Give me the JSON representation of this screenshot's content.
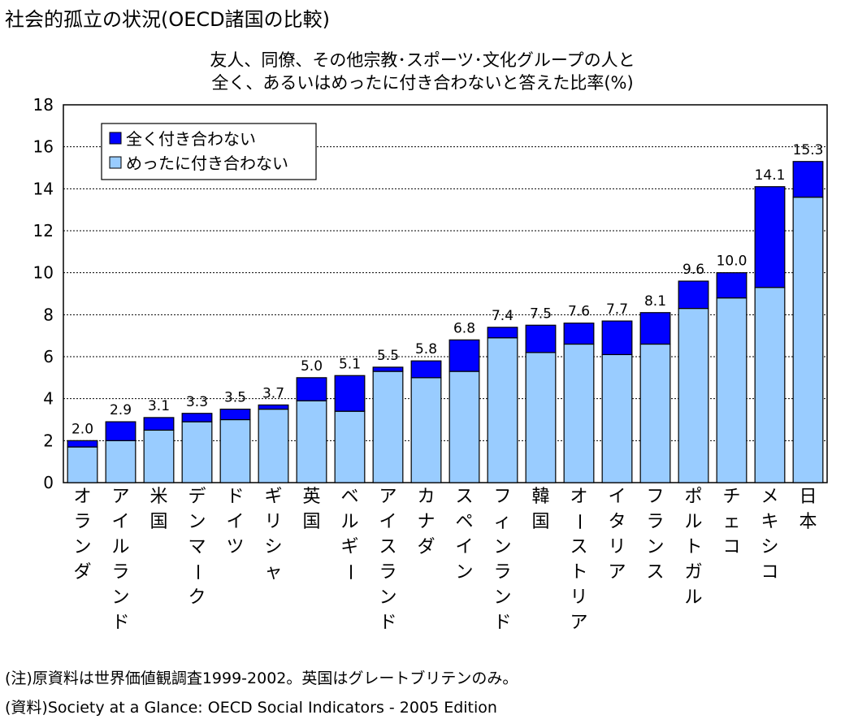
{
  "page_title": "社会的孤立の状況(OECD諸国の比較)",
  "notes": {
    "note": "(注)原資料は世界価値観調査1999-2002。英国はグレートブリテンのみ。",
    "source": "(資料)Society at a Glance: OECD Social Indicators - 2005 Edition"
  },
  "chart_data": {
    "type": "bar",
    "stacked": true,
    "title_lines": [
      "友人、同僚、その他宗教･スポーツ･文化グループの人と",
      "全く、あるいはめったに付き合わないと答えた比率(%)"
    ],
    "xlabel": "",
    "ylabel": "",
    "ylim": [
      0,
      18
    ],
    "yticks": [
      0,
      2,
      4,
      6,
      8,
      10,
      12,
      14,
      16,
      18
    ],
    "grid": true,
    "legend_position": "top-left",
    "categories": [
      "オランダ",
      "アイルランド",
      "米国",
      "デンマーク",
      "ドイツ",
      "ギリシャ",
      "英国",
      "ベルギー",
      "アイスランド",
      "カナダ",
      "スペイン",
      "フィンランド",
      "韓国",
      "オーストリア",
      "イタリア",
      "フランス",
      "ポルトガル",
      "チェコ",
      "メキシコ",
      "日本"
    ],
    "series": [
      {
        "name": "めったに付き合わない",
        "color": "#99ccff",
        "values": [
          1.7,
          2.0,
          2.5,
          2.9,
          3.0,
          3.5,
          3.9,
          3.4,
          5.3,
          5.0,
          5.3,
          6.9,
          6.2,
          6.6,
          6.1,
          6.6,
          8.3,
          8.8,
          9.3,
          13.6
        ]
      },
      {
        "name": "全く付き合わない",
        "color": "#0000ff",
        "values": [
          0.3,
          0.9,
          0.6,
          0.4,
          0.5,
          0.2,
          1.1,
          1.7,
          0.2,
          0.8,
          1.5,
          0.5,
          1.3,
          1.0,
          1.6,
          1.5,
          1.3,
          1.2,
          4.8,
          1.7
        ]
      }
    ],
    "totals": [
      "2.0",
      "2.9",
      "3.1",
      "3.3",
      "3.5",
      "3.7",
      "5.0",
      "5.1",
      "5.5",
      "5.8",
      "6.8",
      "7.4",
      "7.5",
      "7.6",
      "7.7",
      "8.1",
      "9.6",
      "10.0",
      "14.1",
      "15.3"
    ],
    "legend": [
      {
        "label": "全く付き合わない",
        "color": "#0000ff"
      },
      {
        "label": "めったに付き合わない",
        "color": "#99ccff"
      }
    ]
  }
}
